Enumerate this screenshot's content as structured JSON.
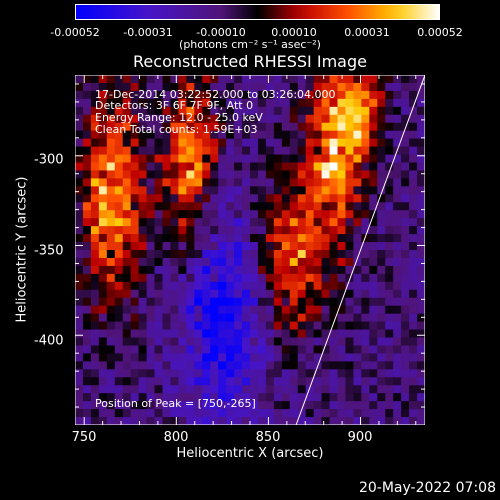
{
  "chart_data": {
    "type": "heatmap",
    "title": "Reconstructed RHESSI Image",
    "xlabel": "Heliocentric X (arcsec)",
    "ylabel": "Heliocentric Y (arcsec)",
    "xlim": [
      745,
      935
    ],
    "ylim": [
      -450,
      -255
    ],
    "x_ticks": [
      "750",
      "800",
      "850",
      "900"
    ],
    "y_ticks": [
      "-300",
      "-350",
      "-400"
    ],
    "colorbar": {
      "ticks": [
        "-0.00052",
        "-0.00031",
        "-0.00010",
        "0.00010",
        "0.00031",
        "0.00052"
      ],
      "range": [
        -0.00052,
        0.00052
      ],
      "unit_label": "(photons cm⁻² s⁻¹ asec⁻²)"
    },
    "annotations": [
      "17-Dec-2014 03:22:52.000 to 03:26:04.000",
      "Detectors: 3F 6F 7F 9F, Att 0",
      "Energy Range: 12.0 - 25.0 keV",
      "Clean    Total counts: 1.59E+03"
    ],
    "peak_label": "Position of Peak = [750,-265]",
    "peak": [
      750,
      -265
    ],
    "limb_line": [
      [
        865,
        -450
      ],
      [
        935,
        -255
      ]
    ],
    "bright_regions": [
      {
        "x": 765,
        "y": -320,
        "sx": 12,
        "sy": 40,
        "amp": 0.0005
      },
      {
        "x": 808,
        "y": -305,
        "sx": 10,
        "sy": 35,
        "amp": 0.00045
      },
      {
        "x": 862,
        "y": -355,
        "sx": 12,
        "sy": 30,
        "amp": 0.0004
      },
      {
        "x": 885,
        "y": -300,
        "sx": 10,
        "sy": 35,
        "amp": 0.0005
      },
      {
        "x": 900,
        "y": -275,
        "sx": 8,
        "sy": 20,
        "amp": 0.00045
      }
    ],
    "dark_regions": [
      {
        "x": 825,
        "y": -390,
        "sx": 15,
        "sy": 40,
        "amp": -0.0004
      }
    ]
  },
  "footer_date": "20-May-2022 07:08"
}
